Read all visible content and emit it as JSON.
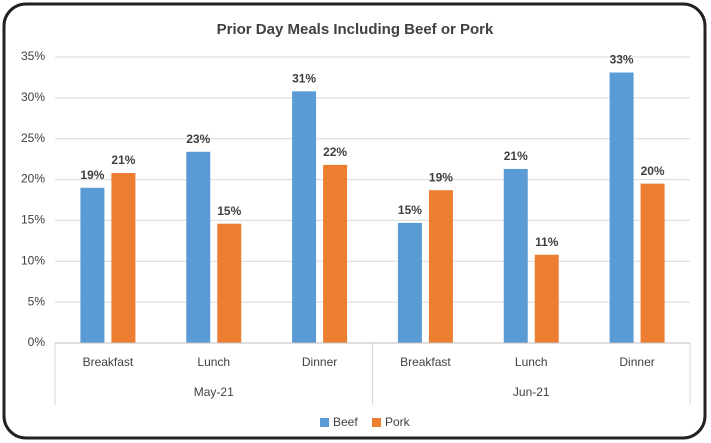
{
  "chart_data": {
    "type": "bar",
    "title": "Prior Day Meals Including Beef or Pork",
    "categories": [
      "Breakfast",
      "Lunch",
      "Dinner",
      "Breakfast",
      "Lunch",
      "Dinner"
    ],
    "groups": [
      "May-21",
      "Jun-21"
    ],
    "series": [
      {
        "name": "Beef",
        "color": "#5b9bd5",
        "values": [
          19,
          23.4,
          30.8,
          14.7,
          21.3,
          33.1
        ],
        "value_labels": [
          "19%",
          "23%",
          "31%",
          "15%",
          "21%",
          "33%"
        ]
      },
      {
        "name": "Pork",
        "color": "#ed7d31",
        "values": [
          20.8,
          14.6,
          21.8,
          18.7,
          10.8,
          19.5
        ],
        "value_labels": [
          "21%",
          "15%",
          "22%",
          "19%",
          "11%",
          "20%"
        ]
      }
    ],
    "ylim": [
      0,
      35
    ],
    "yticks": [
      {
        "value": 0,
        "label": "0%"
      },
      {
        "value": 5,
        "label": "5%"
      },
      {
        "value": 10,
        "label": "10%"
      },
      {
        "value": 15,
        "label": "15%"
      },
      {
        "value": 20,
        "label": "20%"
      },
      {
        "value": 25,
        "label": "25%"
      },
      {
        "value": 30,
        "label": "30%"
      },
      {
        "value": 35,
        "label": "35%"
      }
    ],
    "grid": true,
    "legend": "bottom"
  }
}
